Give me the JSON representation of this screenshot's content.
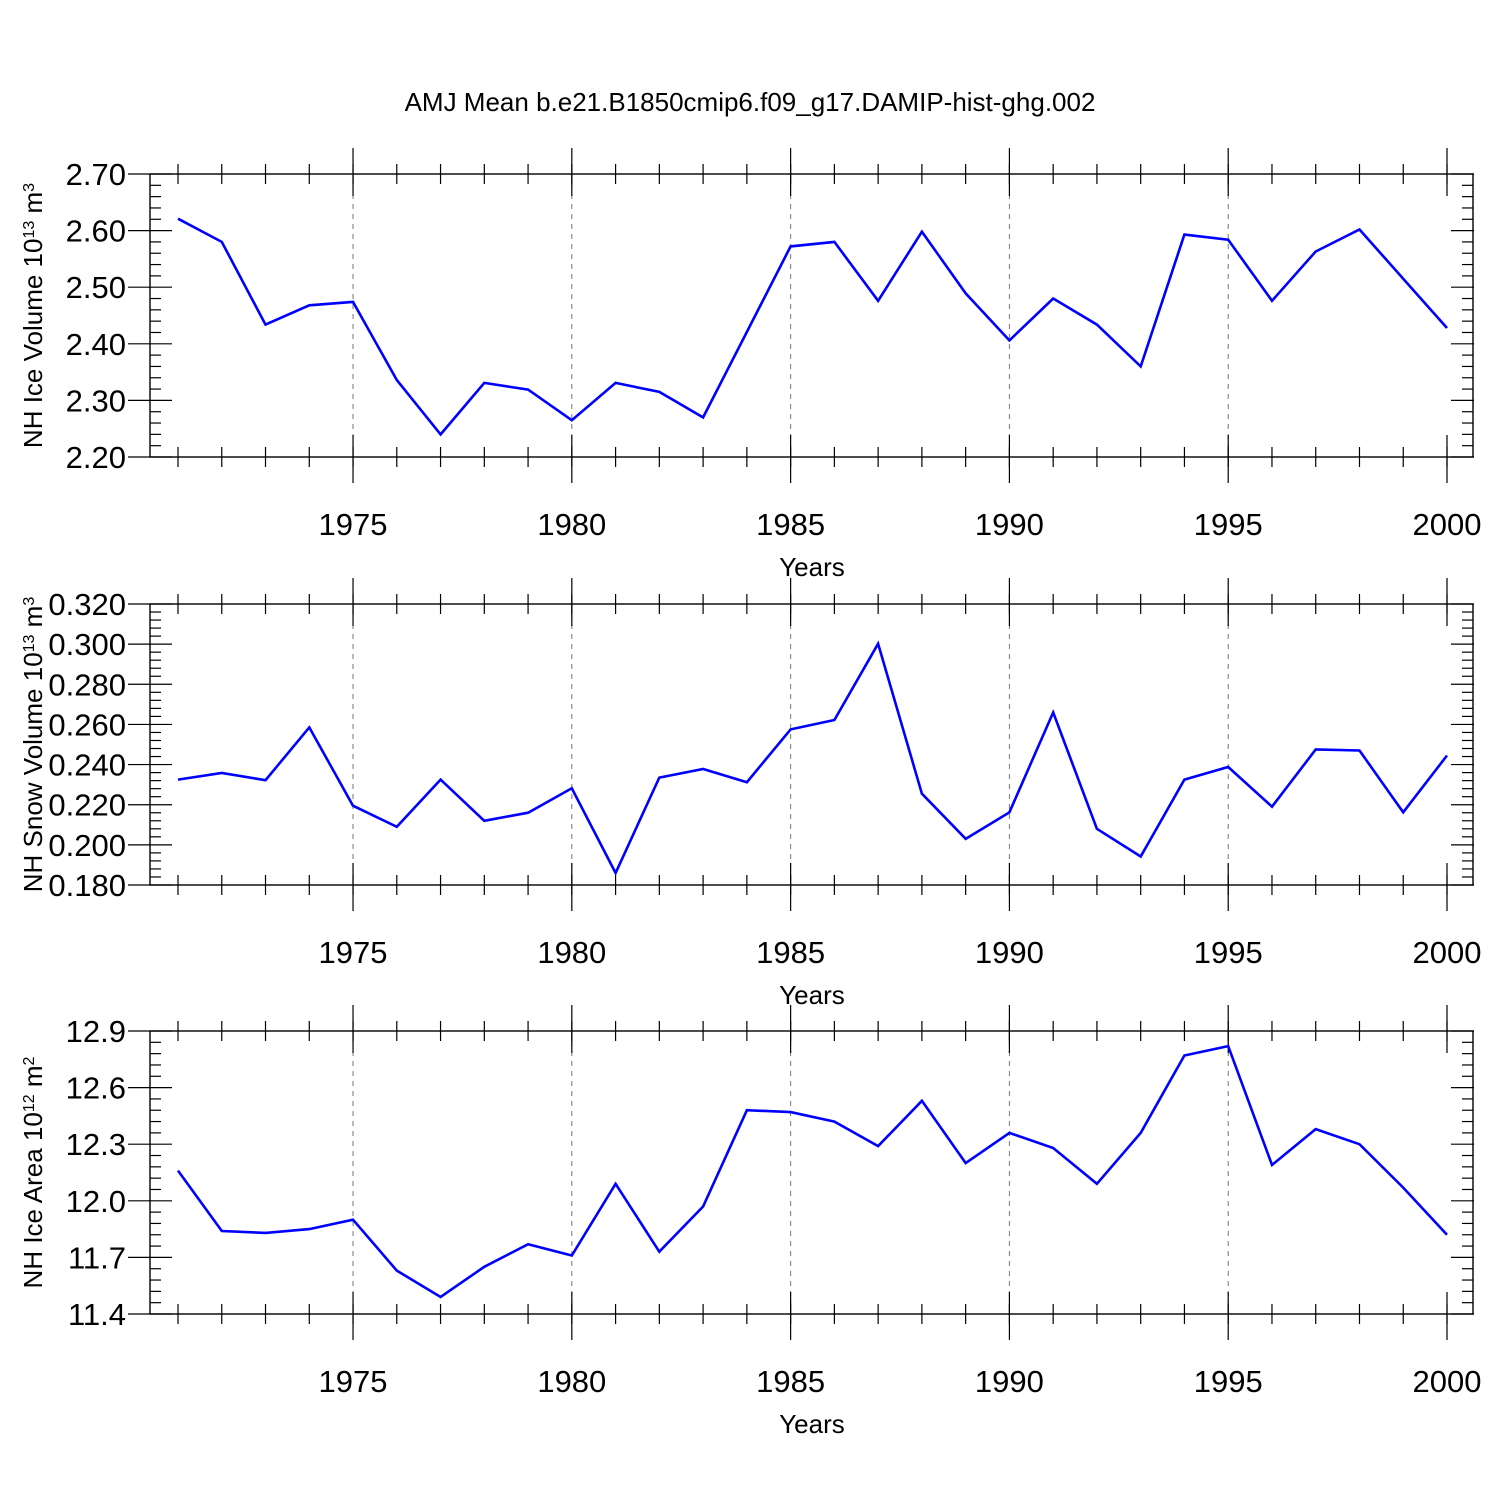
{
  "title": "AMJ Mean b.e21.B1850cmip6.f09_g17.DAMIP-hist-ghg.002",
  "colors": {
    "line": "#0000ff",
    "axis": "#000000",
    "grid": "#777777",
    "background": "#ffffff"
  },
  "chart_data": [
    {
      "type": "line",
      "name": "NH Ice Volume",
      "ylabel": "NH Ice Volume",
      "ylabel_base": "10",
      "ylabel_exp": "13",
      "ylabel_unit": "m",
      "ylabel_unit_exp": "3",
      "xlabel": "Years",
      "xlim": [
        1971,
        2000
      ],
      "ylim": [
        2.2,
        2.7
      ],
      "yticks": [
        "2.20",
        "2.30",
        "2.40",
        "2.50",
        "2.60",
        "2.70"
      ],
      "xticks": [
        "1975",
        "1980",
        "1985",
        "1990",
        "1995",
        "2000"
      ],
      "grid": "vertical dashed at major x ticks",
      "x": [
        1971,
        1972,
        1973,
        1974,
        1975,
        1976,
        1977,
        1978,
        1979,
        1980,
        1981,
        1982,
        1983,
        1984,
        1985,
        1986,
        1987,
        1988,
        1989,
        1990,
        1991,
        1992,
        1993,
        1994,
        1995,
        1996,
        1997,
        1998,
        1999,
        2000
      ],
      "values": [
        2.621,
        2.58,
        2.434,
        2.468,
        2.474,
        2.336,
        2.24,
        2.331,
        2.319,
        2.265,
        2.331,
        2.315,
        2.27,
        2.421,
        2.572,
        2.58,
        2.476,
        2.598,
        2.489,
        2.406,
        2.48,
        2.434,
        2.36,
        2.593,
        2.584,
        2.476,
        2.563,
        2.602,
        2.515,
        2.428
      ]
    },
    {
      "type": "line",
      "name": "NH Snow Volume",
      "ylabel": "NH Snow Volume",
      "ylabel_base": "10",
      "ylabel_exp": "13",
      "ylabel_unit": "m",
      "ylabel_unit_exp": "3",
      "xlabel": "Years",
      "xlim": [
        1971,
        2000
      ],
      "ylim": [
        0.18,
        0.32
      ],
      "yticks": [
        "0.180",
        "0.200",
        "0.220",
        "0.240",
        "0.260",
        "0.280",
        "0.300",
        "0.320"
      ],
      "xticks": [
        "1975",
        "1980",
        "1985",
        "1990",
        "1995",
        "2000"
      ],
      "grid": "vertical dashed at major x ticks",
      "x": [
        1971,
        1972,
        1973,
        1974,
        1975,
        1976,
        1977,
        1978,
        1979,
        1980,
        1981,
        1982,
        1983,
        1984,
        1985,
        1986,
        1987,
        1988,
        1989,
        1990,
        1991,
        1992,
        1993,
        1994,
        1995,
        1996,
        1997,
        1998,
        1999,
        2000
      ],
      "values": [
        0.2325,
        0.2358,
        0.2322,
        0.2585,
        0.2195,
        0.209,
        0.2325,
        0.212,
        0.216,
        0.2282,
        0.186,
        0.2335,
        0.2378,
        0.2312,
        0.2575,
        0.2622,
        0.3002,
        0.2255,
        0.203,
        0.2162,
        0.266,
        0.208,
        0.1942,
        0.2325,
        0.2388,
        0.219,
        0.2475,
        0.247,
        0.2162,
        0.2445
      ]
    },
    {
      "type": "line",
      "name": "NH Ice Area",
      "ylabel": "NH Ice Area",
      "ylabel_base": "10",
      "ylabel_exp": "12",
      "ylabel_unit": "m",
      "ylabel_unit_exp": "2",
      "xlabel": "Years",
      "xlim": [
        1971,
        2000
      ],
      "ylim": [
        11.4,
        12.9
      ],
      "yticks": [
        "11.4",
        "11.7",
        "12.0",
        "12.3",
        "12.6",
        "12.9"
      ],
      "xticks": [
        "1975",
        "1980",
        "1985",
        "1990",
        "1995",
        "2000"
      ],
      "grid": "vertical dashed at major x ticks",
      "x": [
        1971,
        1972,
        1973,
        1974,
        1975,
        1976,
        1977,
        1978,
        1979,
        1980,
        1981,
        1982,
        1983,
        1984,
        1985,
        1986,
        1987,
        1988,
        1989,
        1990,
        1991,
        1992,
        1993,
        1994,
        1995,
        1996,
        1997,
        1998,
        1999,
        2000
      ],
      "values": [
        12.16,
        11.84,
        11.83,
        11.85,
        11.9,
        11.63,
        11.49,
        11.65,
        11.77,
        11.71,
        12.09,
        11.73,
        11.97,
        12.48,
        12.47,
        12.42,
        12.29,
        12.53,
        12.2,
        12.36,
        12.28,
        12.09,
        12.36,
        12.77,
        12.82,
        12.19,
        12.38,
        12.3,
        12.07,
        11.82
      ]
    }
  ]
}
